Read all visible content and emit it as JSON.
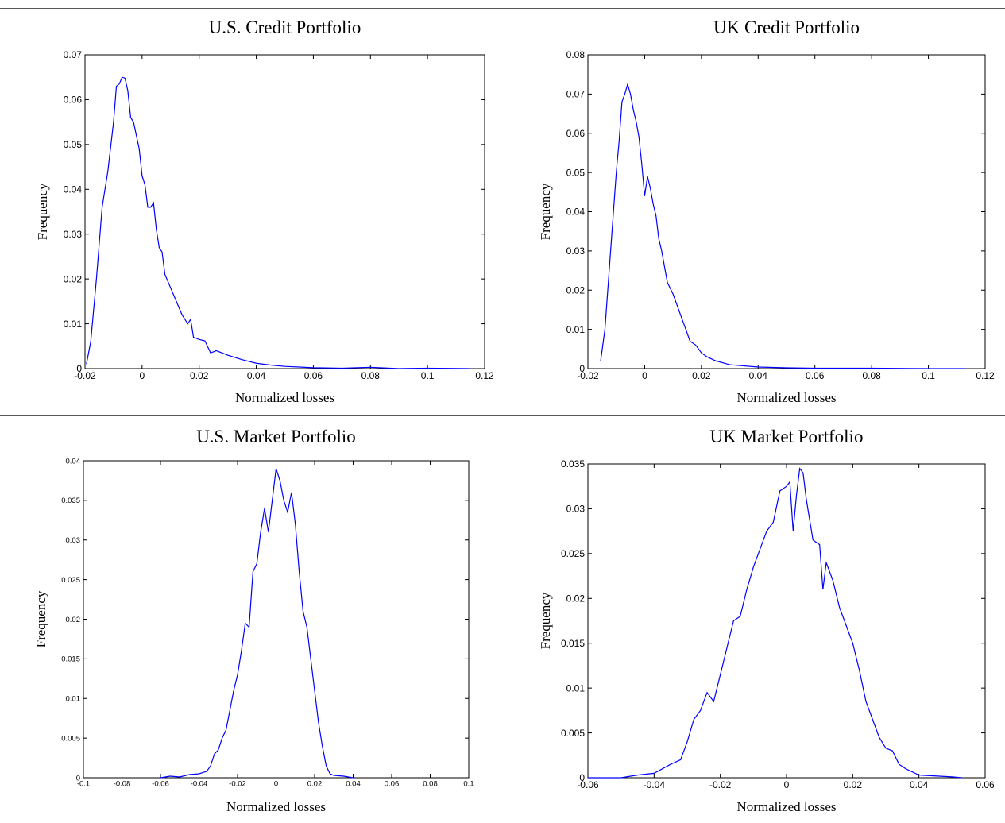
{
  "chart_data": [
    {
      "type": "line",
      "title": "U.S. Credit Portfolio",
      "xlabel": "Normalized losses",
      "ylabel": "Frequency",
      "color": "#0000ff",
      "xlim": [
        -0.02,
        0.12
      ],
      "ylim": [
        0,
        0.07
      ],
      "xticks": [
        -0.02,
        0,
        0.02,
        0.04,
        0.06,
        0.08,
        0.1,
        0.12
      ],
      "yticks": [
        0,
        0.01,
        0.02,
        0.03,
        0.04,
        0.05,
        0.06,
        0.07
      ],
      "x": [
        -0.0195,
        -0.018,
        -0.016,
        -0.014,
        -0.012,
        -0.01,
        -0.009,
        -0.008,
        -0.007,
        -0.006,
        -0.005,
        -0.004,
        -0.003,
        -0.002,
        -0.001,
        0,
        0.001,
        0.002,
        0.003,
        0.004,
        0.005,
        0.006,
        0.007,
        0.008,
        0.01,
        0.012,
        0.014,
        0.016,
        0.017,
        0.018,
        0.02,
        0.022,
        0.024,
        0.026,
        0.03,
        0.035,
        0.04,
        0.045,
        0.05,
        0.06,
        0.07,
        0.08,
        0.09,
        0.1,
        0.115
      ],
      "values": [
        0.001,
        0.006,
        0.02,
        0.036,
        0.044,
        0.055,
        0.063,
        0.0635,
        0.065,
        0.0648,
        0.062,
        0.056,
        0.055,
        0.052,
        0.049,
        0.043,
        0.041,
        0.036,
        0.036,
        0.037,
        0.031,
        0.027,
        0.026,
        0.021,
        0.018,
        0.015,
        0.012,
        0.01,
        0.011,
        0.007,
        0.0065,
        0.0062,
        0.0035,
        0.004,
        0.003,
        0.002,
        0.0012,
        0.0008,
        0.0005,
        0.0002,
        0.0001,
        0.0003,
        0,
        0.0001,
        0
      ]
    },
    {
      "type": "line",
      "title": "UK Credit Portfolio",
      "xlabel": "Normalized losses",
      "ylabel": "Frequency",
      "color": "#0000ff",
      "xlim": [
        -0.02,
        0.12
      ],
      "ylim": [
        0,
        0.08
      ],
      "xticks": [
        -0.02,
        0,
        0.02,
        0.04,
        0.06,
        0.08,
        0.1,
        0.12
      ],
      "yticks": [
        0,
        0.01,
        0.02,
        0.03,
        0.04,
        0.05,
        0.06,
        0.07,
        0.08
      ],
      "x": [
        -0.0155,
        -0.014,
        -0.012,
        -0.01,
        -0.009,
        -0.008,
        -0.007,
        -0.006,
        -0.005,
        -0.004,
        -0.003,
        -0.002,
        -0.001,
        0,
        0.001,
        0.002,
        0.003,
        0.004,
        0.005,
        0.006,
        0.007,
        0.008,
        0.01,
        0.012,
        0.014,
        0.016,
        0.018,
        0.02,
        0.022,
        0.025,
        0.03,
        0.04,
        0.05,
        0.06,
        0.08,
        0.1,
        0.113
      ],
      "values": [
        0.002,
        0.01,
        0.03,
        0.05,
        0.058,
        0.068,
        0.07,
        0.0725,
        0.07,
        0.066,
        0.063,
        0.059,
        0.052,
        0.044,
        0.049,
        0.046,
        0.042,
        0.039,
        0.033,
        0.03,
        0.026,
        0.022,
        0.019,
        0.015,
        0.011,
        0.007,
        0.006,
        0.004,
        0.003,
        0.002,
        0.001,
        0.0004,
        0.0002,
        0.0001,
        0.0001,
        0,
        0
      ]
    },
    {
      "type": "line",
      "title": "U.S. Market Portfolio",
      "xlabel": "Normalized losses",
      "ylabel": "Frequency",
      "color": "#0000ff",
      "xlim": [
        -0.1,
        0.1
      ],
      "ylim": [
        0,
        0.04
      ],
      "xticks": [
        -0.1,
        -0.08,
        -0.06,
        -0.04,
        -0.02,
        0,
        0.02,
        0.04,
        0.06,
        0.08,
        0.1
      ],
      "yticks": [
        0,
        0.005,
        0.01,
        0.015,
        0.02,
        0.025,
        0.03,
        0.035,
        0.04
      ],
      "x": [
        -0.06,
        -0.055,
        -0.05,
        -0.045,
        -0.04,
        -0.036,
        -0.034,
        -0.032,
        -0.03,
        -0.028,
        -0.026,
        -0.024,
        -0.022,
        -0.02,
        -0.018,
        -0.016,
        -0.014,
        -0.012,
        -0.01,
        -0.008,
        -0.006,
        -0.004,
        -0.002,
        0,
        0.002,
        0.004,
        0.006,
        0.008,
        0.01,
        0.012,
        0.014,
        0.016,
        0.018,
        0.02,
        0.022,
        0.024,
        0.026,
        0.028,
        0.03,
        0.035,
        0.04
      ],
      "values": [
        0,
        0.0002,
        0.0001,
        0.0004,
        0.0005,
        0.0008,
        0.0015,
        0.003,
        0.0035,
        0.005,
        0.006,
        0.0085,
        0.011,
        0.013,
        0.016,
        0.0195,
        0.019,
        0.026,
        0.027,
        0.031,
        0.034,
        0.031,
        0.035,
        0.039,
        0.0375,
        0.035,
        0.0335,
        0.036,
        0.032,
        0.026,
        0.021,
        0.019,
        0.015,
        0.011,
        0.007,
        0.004,
        0.0015,
        0.0005,
        0.0003,
        0.0002,
        0
      ]
    },
    {
      "type": "line",
      "title": "UK Market Portfolio",
      "xlabel": "Normalized losses",
      "ylabel": "Frequency",
      "color": "#0000ff",
      "xlim": [
        -0.06,
        0.06
      ],
      "ylim": [
        0,
        0.035
      ],
      "xticks": [
        -0.06,
        -0.04,
        -0.02,
        0,
        0.02,
        0.04,
        0.06
      ],
      "yticks": [
        0,
        0.005,
        0.01,
        0.015,
        0.02,
        0.025,
        0.03,
        0.035
      ],
      "x": [
        -0.06,
        -0.05,
        -0.045,
        -0.04,
        -0.035,
        -0.032,
        -0.03,
        -0.028,
        -0.026,
        -0.024,
        -0.022,
        -0.02,
        -0.018,
        -0.016,
        -0.014,
        -0.012,
        -0.01,
        -0.008,
        -0.006,
        -0.004,
        -0.002,
        0,
        0.001,
        0.002,
        0.003,
        0.004,
        0.005,
        0.006,
        0.008,
        0.01,
        0.011,
        0.012,
        0.014,
        0.016,
        0.018,
        0.02,
        0.022,
        0.024,
        0.026,
        0.028,
        0.03,
        0.032,
        0.034,
        0.036,
        0.04,
        0.045,
        0.05,
        0.053
      ],
      "values": [
        0,
        0,
        0.0003,
        0.0005,
        0.0015,
        0.002,
        0.004,
        0.0065,
        0.0075,
        0.0095,
        0.0085,
        0.0115,
        0.0145,
        0.0175,
        0.018,
        0.021,
        0.0235,
        0.0255,
        0.0275,
        0.0285,
        0.032,
        0.0325,
        0.033,
        0.0275,
        0.0315,
        0.0345,
        0.034,
        0.031,
        0.0265,
        0.026,
        0.021,
        0.024,
        0.022,
        0.019,
        0.017,
        0.015,
        0.012,
        0.0085,
        0.0065,
        0.0045,
        0.0033,
        0.003,
        0.0015,
        0.001,
        0.0003,
        0.0002,
        0.0001,
        0
      ]
    }
  ]
}
